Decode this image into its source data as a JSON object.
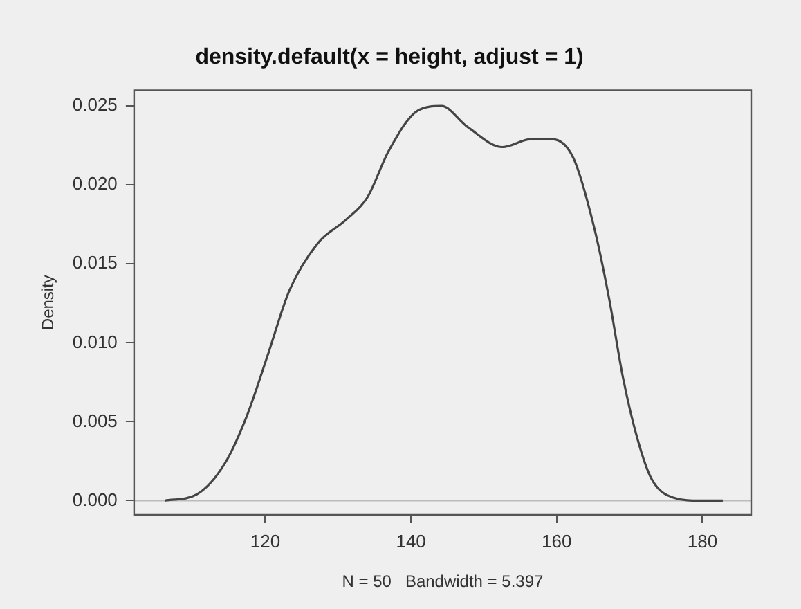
{
  "chart_data": {
    "type": "line",
    "title": "density.default(x = height, adjust = 1)",
    "xlabel": "N = 50   Bandwidth = 5.397",
    "ylabel": "Density",
    "x": [
      106.2,
      110.6,
      114.5,
      117.5,
      120.4,
      123.3,
      127.2,
      131.1,
      134,
      137,
      140.9,
      144.2,
      147.7,
      152.6,
      156.5,
      159.4,
      162.3,
      165.2,
      167.2,
      169.1,
      171.1,
      173,
      176,
      179.8,
      182.8
    ],
    "series": [
      {
        "color": "#444444",
        "values": [
          0,
          0.0004,
          0.0024,
          0.0054,
          0.0093,
          0.0133,
          0.0163,
          0.0178,
          0.0192,
          0.0222,
          0.0247,
          0.025,
          0.0237,
          0.0224,
          0.0229,
          0.0229,
          0.0217,
          0.0172,
          0.0128,
          0.0078,
          0.0039,
          0.0014,
          0.0002,
          0,
          0
        ]
      }
    ],
    "xlim": [
      102,
      186.7
    ],
    "ylim": [
      -0.0009,
      0.026
    ],
    "xticks": [
      120,
      140,
      160,
      180
    ],
    "yticks": [
      {
        "value": 0,
        "label": "0.000"
      },
      {
        "value": 0.005,
        "label": "0.005"
      },
      {
        "value": 0.01,
        "label": "0.010"
      },
      {
        "value": 0.015,
        "label": "0.015"
      },
      {
        "value": 0.02,
        "label": "0.020"
      },
      {
        "value": 0.025,
        "label": "0.025"
      }
    ],
    "ref_lines": [
      {
        "axis": "y",
        "value": 0,
        "color": "#bbbbbb"
      }
    ],
    "grid": false,
    "legend": false,
    "marker": "none",
    "line_style": "solid"
  }
}
